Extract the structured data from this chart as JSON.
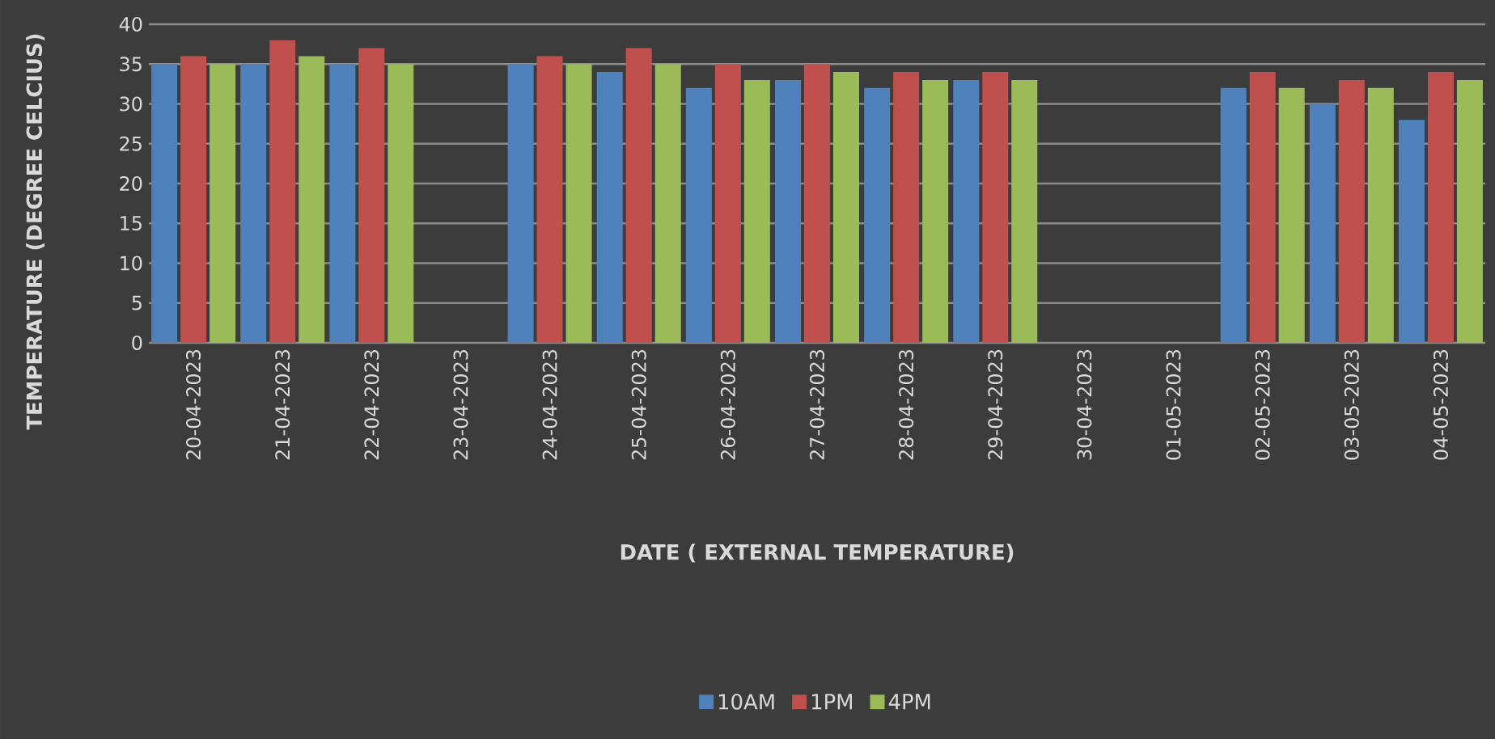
{
  "chart_data": {
    "type": "bar",
    "xlabel": "DATE ( EXTERNAL TEMPERATURE)",
    "ylabel": "TEMPERATURE (DEGREE CELCIUS)",
    "categories": [
      "20-04-2023",
      "21-04-2023",
      "22-04-2023",
      "23-04-2023",
      "24-04-2023",
      "25-04-2023",
      "26-04-2023",
      "27-04-2023",
      "28-04-2023",
      "29-04-2023",
      "30-04-2023",
      "01-05-2023",
      "02-05-2023",
      "03-05-2023",
      "04-05-2023"
    ],
    "series": [
      {
        "name": "10AM",
        "color": "#4f81bd",
        "values": [
          35,
          35,
          35,
          null,
          35,
          34,
          32,
          33,
          32,
          33,
          null,
          null,
          32,
          30,
          28
        ]
      },
      {
        "name": "1PM",
        "color": "#c0504d",
        "values": [
          36,
          38,
          37,
          null,
          36,
          37,
          35,
          35,
          34,
          34,
          null,
          null,
          34,
          33,
          34
        ]
      },
      {
        "name": "4PM",
        "color": "#9bbb59",
        "values": [
          35,
          36,
          35,
          null,
          35,
          35,
          33,
          34,
          33,
          33,
          null,
          null,
          32,
          32,
          33
        ]
      }
    ],
    "ylim": [
      0,
      40
    ],
    "yticks": [
      0,
      5,
      10,
      15,
      20,
      25,
      30,
      35,
      40
    ],
    "grid": "y",
    "legend": "bottom"
  }
}
